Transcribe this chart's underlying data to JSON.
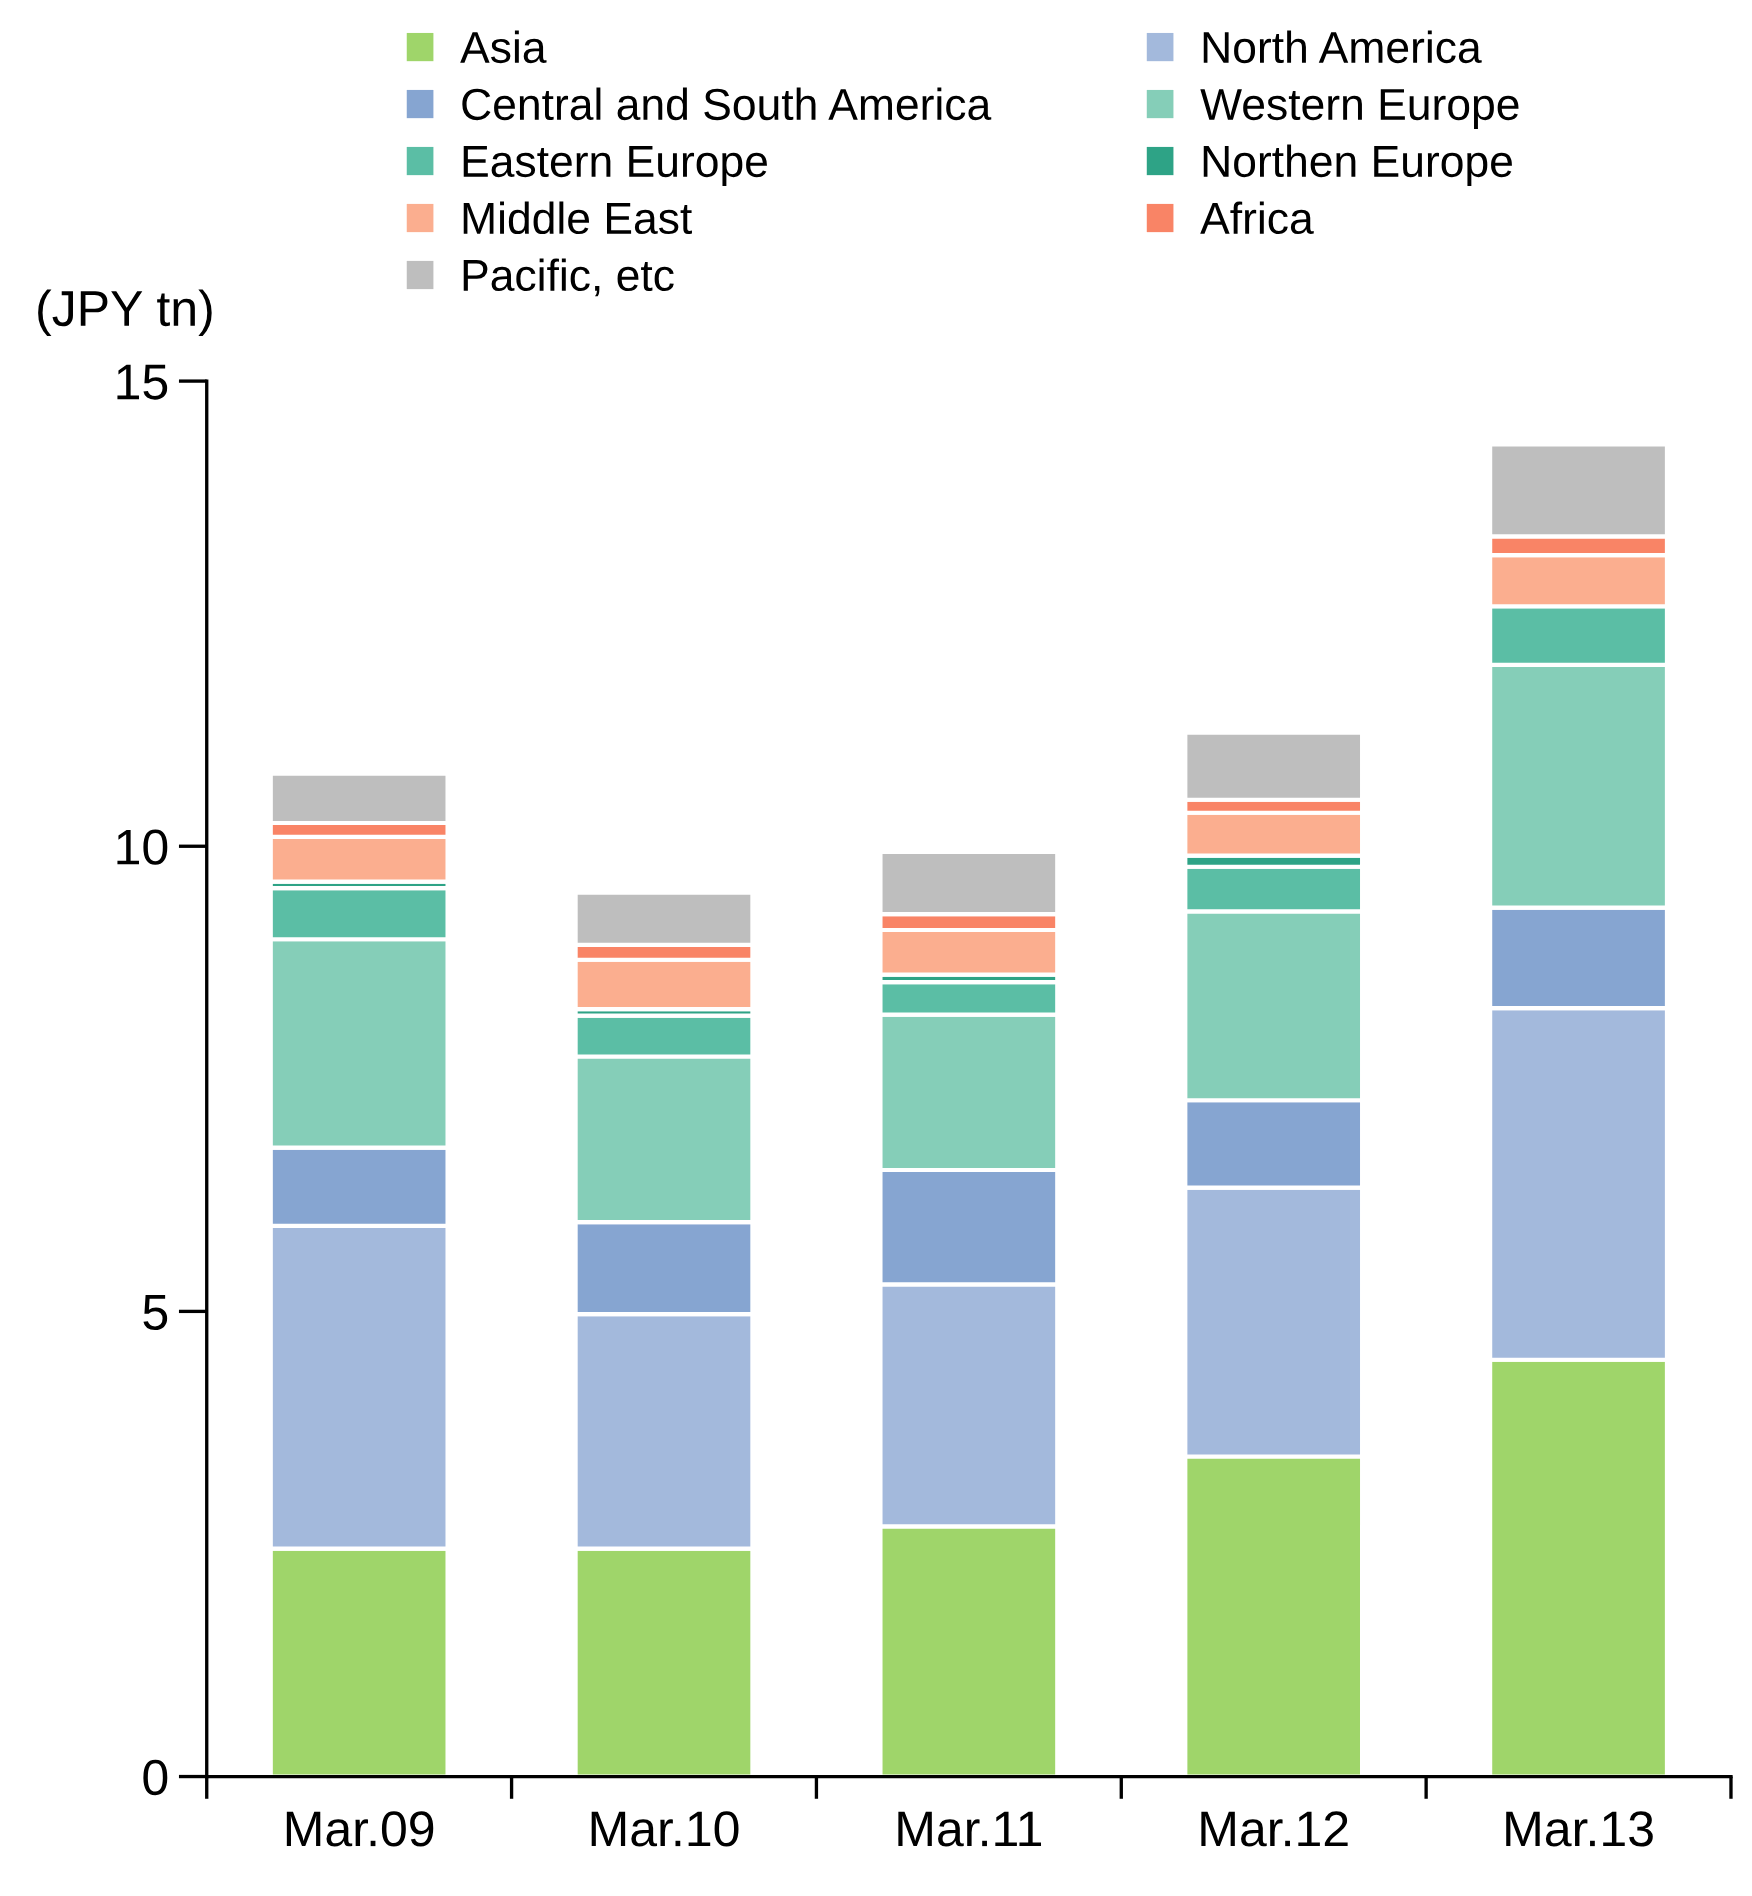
{
  "chart_data": {
    "type": "bar",
    "stacked": true,
    "ylabel": "(JPY tn)",
    "categories": [
      "Mar.09",
      "Mar.10",
      "Mar.11",
      "Mar.12",
      "Mar.13"
    ],
    "ylim": [
      0,
      15
    ],
    "yticks": [
      0,
      5,
      10,
      15
    ],
    "grid": false,
    "legend": "top",
    "series": [
      {
        "name": "Asia",
        "color": "#9fd56a",
        "values": [
          2.45,
          2.45,
          2.69,
          3.44,
          4.48
        ]
      },
      {
        "name": "North America",
        "color": "#a3b9dc",
        "values": [
          3.47,
          2.52,
          2.6,
          2.89,
          3.78
        ]
      },
      {
        "name": "Central and South America",
        "color": "#86a5d1",
        "values": [
          0.84,
          0.99,
          1.23,
          0.94,
          1.08
        ]
      },
      {
        "name": "Western Europe",
        "color": "#85ceb8",
        "values": [
          2.24,
          1.78,
          1.67,
          2.03,
          2.61
        ]
      },
      {
        "name": "Eastern Europe",
        "color": "#5bbea5",
        "values": [
          0.55,
          0.44,
          0.35,
          0.48,
          0.63
        ]
      },
      {
        "name": "Northen Europe",
        "color": "#2ea386",
        "values": [
          0.07,
          0.07,
          0.08,
          0.12,
          0
        ]
      },
      {
        "name": "Middle East",
        "color": "#fbae8f",
        "values": [
          0.48,
          0.53,
          0.48,
          0.46,
          0.55
        ]
      },
      {
        "name": "Africa",
        "color": "#f98466",
        "values": [
          0.15,
          0.16,
          0.17,
          0.14,
          0.2
        ]
      },
      {
        "name": "Pacific, etc",
        "color": "#bebebe",
        "values": [
          0.53,
          0.56,
          0.67,
          0.72,
          0.99
        ]
      }
    ]
  }
}
